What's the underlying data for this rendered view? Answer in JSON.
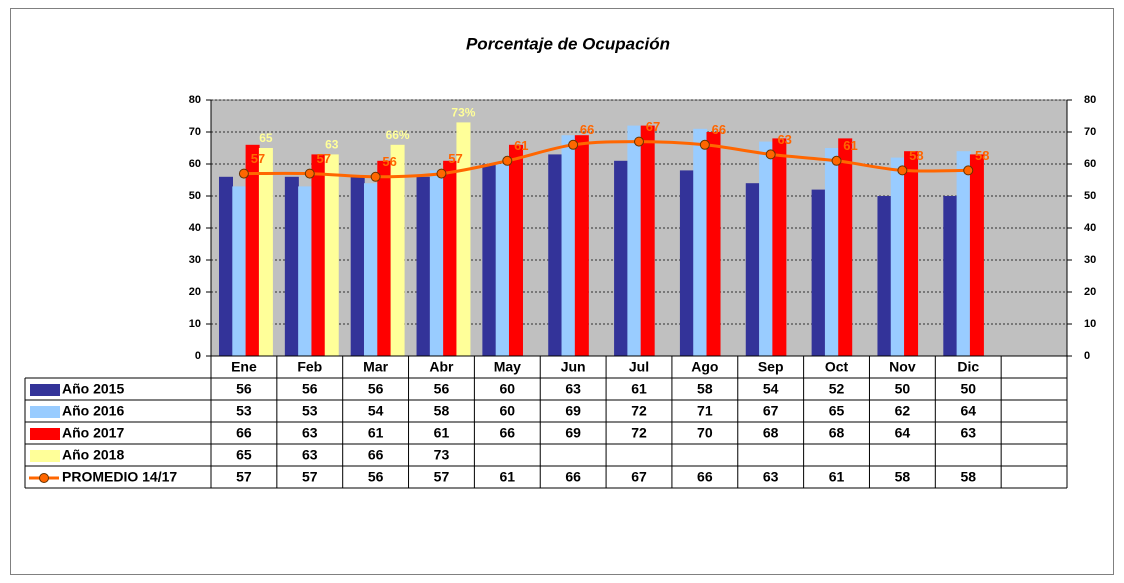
{
  "chart_data": {
    "type": "bar",
    "title": "Porcentaje de Ocupación",
    "categories": [
      "Ene",
      "Feb",
      "Mar",
      "Abr",
      "May",
      "Jun",
      "Jul",
      "Ago",
      "Sep",
      "Oct",
      "Nov",
      "Dic",
      null
    ],
    "series": [
      {
        "name": "Año 2015",
        "color": "#333399",
        "values": [
          56,
          56,
          56,
          56,
          60,
          63,
          61,
          58,
          54,
          52,
          50,
          50,
          null
        ]
      },
      {
        "name": "Año 2016",
        "color": "#99ccff",
        "values": [
          53,
          53,
          54,
          58,
          60,
          69,
          72,
          71,
          67,
          65,
          62,
          64,
          null
        ]
      },
      {
        "name": "Año 2017",
        "color": "#ff0000",
        "values": [
          66,
          63,
          61,
          61,
          66,
          69,
          72,
          70,
          68,
          68,
          64,
          63,
          null
        ]
      },
      {
        "name": "Año 2018",
        "color": "#ffff99",
        "values": [
          65,
          63,
          66,
          73,
          null,
          null,
          null,
          null,
          null,
          null,
          null,
          null,
          null
        ],
        "value_labels": [
          "65",
          "63",
          "66%",
          "73%",
          null,
          null,
          null,
          null,
          null,
          null,
          null,
          null,
          null
        ]
      },
      {
        "name": "PROMEDIO 14/17",
        "color": "#ff6600",
        "type": "line",
        "axis": "y2",
        "values": [
          57,
          57,
          56,
          57,
          61,
          66,
          67,
          66,
          63,
          61,
          58,
          58,
          null
        ]
      }
    ],
    "ylim": [
      0,
      80
    ],
    "yticks": [
      0,
      10,
      20,
      30,
      40,
      50,
      60,
      70,
      80
    ],
    "y2lim": [
      0,
      80
    ],
    "y2ticks": [
      0,
      10,
      20,
      30,
      40,
      50,
      60,
      70,
      80
    ],
    "grid": true,
    "data_table": true
  }
}
